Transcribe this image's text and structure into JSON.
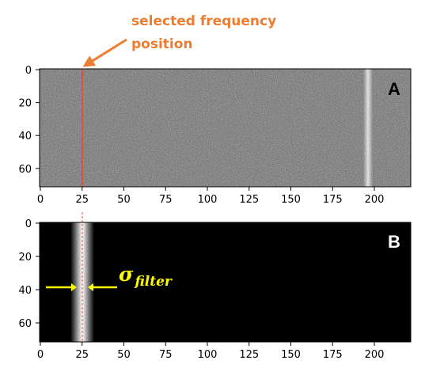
{
  "annotation": {
    "line1": "selected frequency",
    "line2": "position",
    "color": "#ed7d31"
  },
  "sigma": {
    "symbol": "σ",
    "subscript": "filter",
    "color": "#ffff00"
  },
  "panels": [
    {
      "id": "A",
      "letter": "A",
      "letter_color": "#000000",
      "image": "grey noise spectrogram with a bright vertical line near column 197 and a red selection line at column 26",
      "x_ticks": [
        "0",
        "25",
        "50",
        "75",
        "100",
        "125",
        "150",
        "175",
        "200"
      ],
      "y_ticks": [
        "0",
        "20",
        "40",
        "60"
      ],
      "selection_column": 26,
      "bright_column": 197
    },
    {
      "id": "B",
      "letter": "B",
      "letter_color": "#ffffff",
      "image": "black field with a white gaussian band centred on column 26 and a dashed red centre line",
      "x_ticks": [
        "0",
        "25",
        "50",
        "75",
        "100",
        "125",
        "150",
        "175",
        "200"
      ],
      "y_ticks": [
        "0",
        "20",
        "40",
        "60"
      ],
      "filter_center_column": 26
    }
  ],
  "colors": {
    "selection_line": "#e0503c",
    "filter_band": "#ffffff",
    "background_B": "#000000"
  }
}
